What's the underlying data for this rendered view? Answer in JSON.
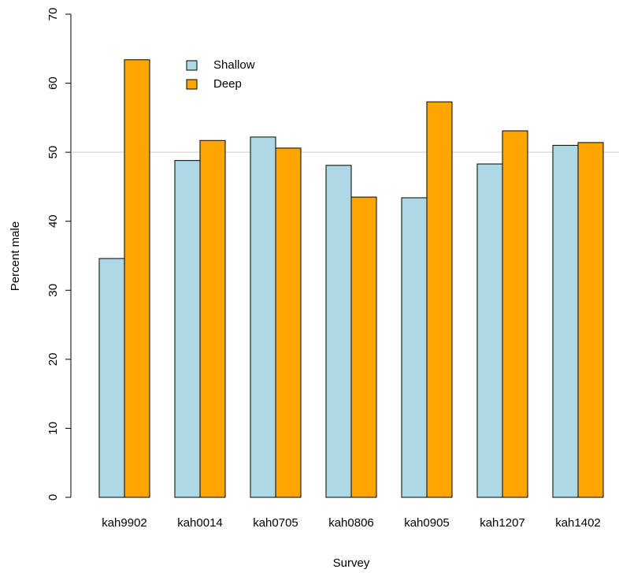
{
  "chart_data": {
    "type": "bar",
    "x_label": "Survey",
    "y_label": "Percent male",
    "categories": [
      "kah9902",
      "kah0014",
      "kah0705",
      "kah0806",
      "kah0905",
      "kah1207",
      "kah1402"
    ],
    "series": [
      {
        "name": "Shallow",
        "color": "#add8e6",
        "values": [
          34.6,
          48.8,
          52.2,
          48.1,
          43.4,
          48.3,
          51.0
        ]
      },
      {
        "name": "Deep",
        "color": "#ffa500",
        "values": [
          63.4,
          51.7,
          50.6,
          43.5,
          57.3,
          53.1,
          51.4
        ]
      }
    ],
    "ylim": [
      0,
      70
    ],
    "yticks": [
      0,
      10,
      20,
      30,
      40,
      50,
      60,
      70
    ],
    "reference_line": 50,
    "reference_line_color": "#cccccc"
  }
}
